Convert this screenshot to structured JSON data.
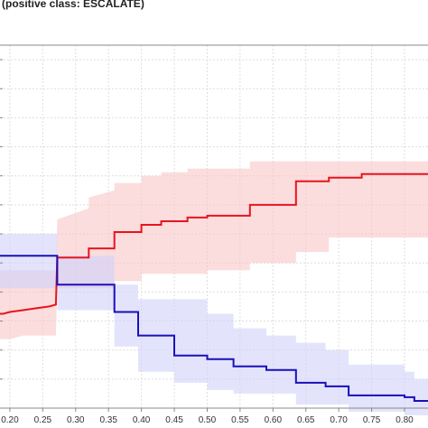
{
  "chart_data": {
    "type": "line",
    "title": "(positive class: ESCALATE)",
    "xlabel": "",
    "ylabel": "",
    "xlim": [
      0.185,
      0.8357
    ],
    "ylim": [
      0,
      1
    ],
    "grid": true,
    "x_ticks": [
      "0.20",
      "0.25",
      "0.30",
      "0.35",
      "0.40",
      "0.45",
      "0.50",
      "0.55",
      "0.60",
      "0.65",
      "0.70",
      "0.75",
      "0.80"
    ],
    "series": [
      {
        "color": "#e8141c",
        "band_color": "#f8c6c8",
        "x": [
          0.185,
          0.19,
          0.2,
          0.22,
          0.24,
          0.26,
          0.27,
          0.272,
          0.32,
          0.32,
          0.359,
          0.359,
          0.4,
          0.4,
          0.43,
          0.43,
          0.47,
          0.47,
          0.5,
          0.5,
          0.565,
          0.565,
          0.635,
          0.635,
          0.685,
          0.685,
          0.735,
          0.735,
          0.8357
        ],
        "y": [
          0.26,
          0.26,
          0.265,
          0.27,
          0.275,
          0.28,
          0.285,
          0.415,
          0.415,
          0.44,
          0.44,
          0.485,
          0.485,
          0.505,
          0.505,
          0.515,
          0.515,
          0.525,
          0.525,
          0.53,
          0.53,
          0.56,
          0.56,
          0.625,
          0.625,
          0.635,
          0.635,
          0.645,
          0.645
        ],
        "y_lower": [
          0.19,
          0.19,
          0.19,
          0.2,
          0.2,
          0.2,
          0.2,
          0.33,
          0.33,
          0.33,
          0.33,
          0.35,
          0.35,
          0.37,
          0.37,
          0.37,
          0.37,
          0.37,
          0.37,
          0.38,
          0.38,
          0.4,
          0.4,
          0.43,
          0.43,
          0.47,
          0.47,
          0.47,
          0.47
        ],
        "y_upper": [
          0.38,
          0.38,
          0.38,
          0.38,
          0.38,
          0.38,
          0.38,
          0.52,
          0.55,
          0.58,
          0.6,
          0.62,
          0.62,
          0.64,
          0.64,
          0.65,
          0.65,
          0.66,
          0.66,
          0.66,
          0.66,
          0.68,
          0.68,
          0.68,
          0.68,
          0.68,
          0.68,
          0.68,
          0.68
        ]
      },
      {
        "color": "#1a10b8",
        "band_color": "#d0d2fa",
        "x": [
          0.185,
          0.272,
          0.272,
          0.359,
          0.359,
          0.395,
          0.395,
          0.45,
          0.45,
          0.5,
          0.5,
          0.54,
          0.54,
          0.59,
          0.59,
          0.635,
          0.635,
          0.68,
          0.68,
          0.715,
          0.715,
          0.8,
          0.8,
          0.815,
          0.815,
          0.8357
        ],
        "y": [
          0.42,
          0.42,
          0.34,
          0.34,
          0.265,
          0.265,
          0.2,
          0.2,
          0.145,
          0.145,
          0.135,
          0.135,
          0.115,
          0.115,
          0.105,
          0.105,
          0.07,
          0.07,
          0.06,
          0.06,
          0.035,
          0.035,
          0.03,
          0.03,
          0.02,
          0.02
        ],
        "y_lower": [
          0.33,
          0.33,
          0.27,
          0.27,
          0.17,
          0.17,
          0.1,
          0.1,
          0.07,
          0.07,
          0.05,
          0.05,
          0.04,
          0.04,
          0.04,
          0.04,
          0.01,
          0.01,
          0.01,
          0.01,
          -0.01,
          -0.01,
          -0.02,
          -0.02,
          -0.02,
          -0.02
        ],
        "y_upper": [
          0.48,
          0.48,
          0.42,
          0.42,
          0.34,
          0.34,
          0.3,
          0.3,
          0.3,
          0.3,
          0.26,
          0.26,
          0.22,
          0.22,
          0.2,
          0.2,
          0.18,
          0.18,
          0.16,
          0.16,
          0.12,
          0.12,
          0.1,
          0.1,
          0.08,
          0.08
        ]
      }
    ]
  }
}
